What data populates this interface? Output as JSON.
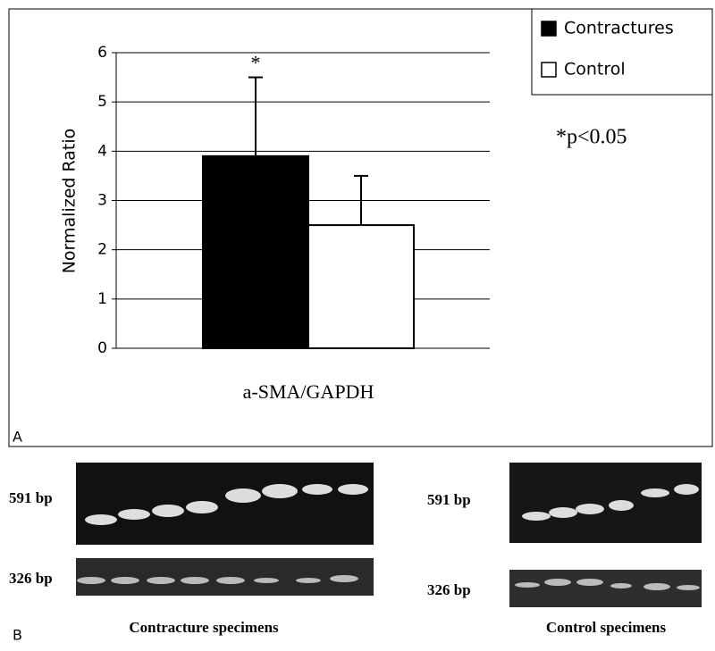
{
  "chart_data": {
    "type": "bar",
    "y_label": "Normalized Ratio",
    "categories": [
      "a-SMA/GAPDH"
    ],
    "series": [
      {
        "name": "Contractures",
        "color": "#000000",
        "values": [
          3.9
        ],
        "errors": [
          1.6
        ]
      },
      {
        "name": "Control",
        "color": "#ffffff",
        "values": [
          2.5
        ],
        "errors": [
          1.0
        ]
      }
    ],
    "ylim": [
      0,
      6
    ],
    "yticks": [
      0,
      1,
      2,
      3,
      4,
      5,
      6
    ],
    "grid": true,
    "legend": "upper right",
    "significance_mark": "*",
    "significance_note": "*p<0.05",
    "panel_labels": [
      "A",
      "B"
    ],
    "gel_band_labels": [
      "591 bp",
      "326 bp",
      "591 bp",
      "326 bp"
    ],
    "gel_captions": [
      "Contracture specimens",
      "Control specimens"
    ]
  }
}
